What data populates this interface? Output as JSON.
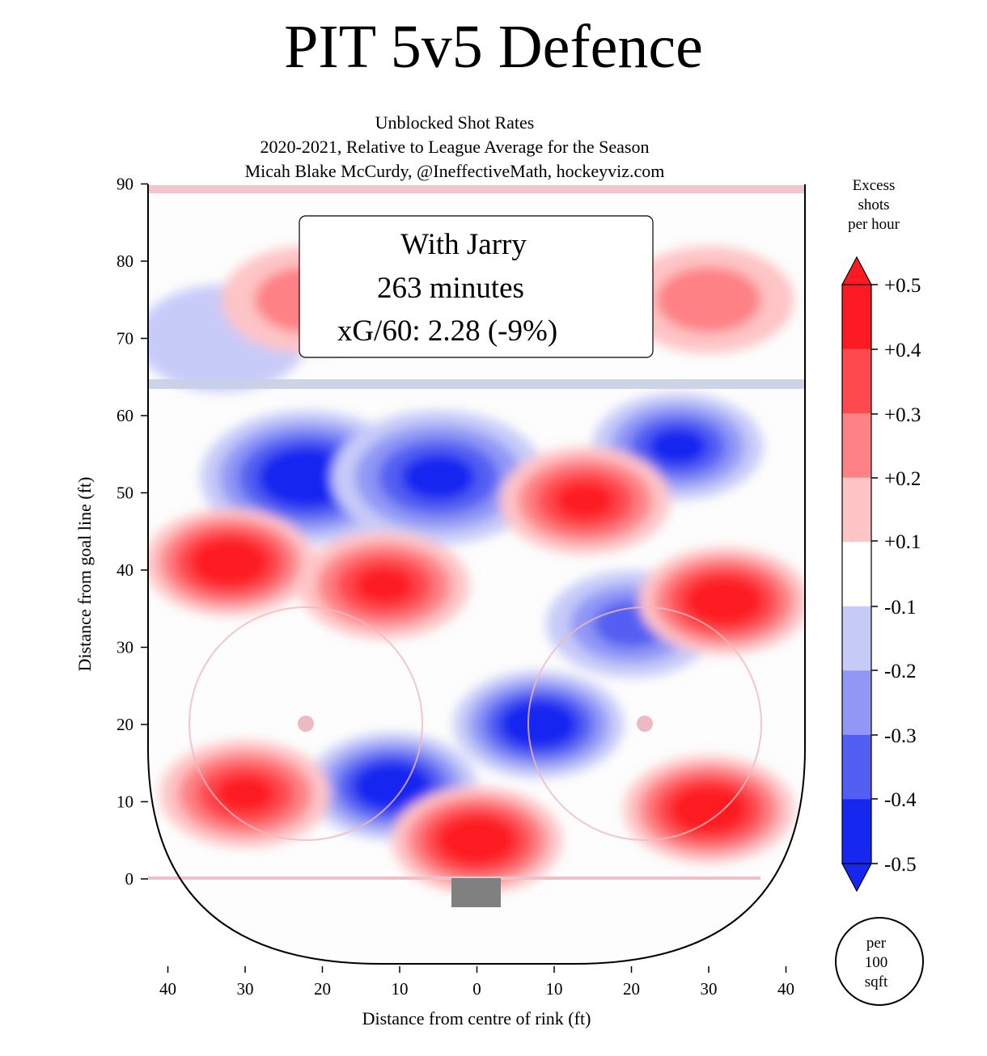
{
  "title": "PIT 5v5 Defence",
  "subtitle_lines": [
    "Unblocked Shot Rates",
    "2020-2021, Relative to League Average for the Season",
    "Micah Blake McCurdy, @IneffectiveMath, hockeyviz.com"
  ],
  "info_box": {
    "line1": "With Jarry",
    "line2": "263 minutes",
    "line3": "xG/60: 2.28 (-9%)"
  },
  "colorbar": {
    "title_lines": [
      "Excess",
      "shots",
      "per hour"
    ],
    "labels": [
      "+0.5",
      "+0.4",
      "+0.3",
      "+0.2",
      "+0.1",
      "-0.1",
      "-0.2",
      "-0.3",
      "-0.4",
      "-0.5"
    ],
    "colors": [
      "#fd1a22",
      "#fe4a4f",
      "#fd8185",
      "#fec4c6",
      "#ffffff",
      "#c7cbf8",
      "#9097f5",
      "#535ff2",
      "#1627f0"
    ]
  },
  "per_area_lines": [
    "per",
    "100",
    "sqft"
  ],
  "chart_data": {
    "type": "heatmap",
    "xlabel": "Distance from centre of rink (ft)",
    "ylabel": "Distance from goal line (ft)",
    "xlim": [
      -42,
      42
    ],
    "ylim": [
      -11,
      90
    ],
    "x_ticks": [
      {
        "v": -40,
        "t": "40"
      },
      {
        "v": -30,
        "t": "30"
      },
      {
        "v": -20,
        "t": "20"
      },
      {
        "v": -10,
        "t": "10"
      },
      {
        "v": 0,
        "t": "0"
      },
      {
        "v": 10,
        "t": "10"
      },
      {
        "v": 20,
        "t": "20"
      },
      {
        "v": 30,
        "t": "30"
      },
      {
        "v": 40,
        "t": "40"
      }
    ],
    "y_ticks": [
      0,
      10,
      20,
      30,
      40,
      50,
      60,
      70,
      80,
      90
    ],
    "levels": [
      -0.5,
      -0.4,
      -0.3,
      -0.2,
      -0.1,
      0.1,
      0.2,
      0.3,
      0.4,
      0.5
    ],
    "hot_spots": [
      {
        "region": "left point",
        "x": -32,
        "y": 41,
        "value": 0.45
      },
      {
        "region": "left high slot",
        "x": -12,
        "y": 38,
        "value": 0.4
      },
      {
        "region": "right faceoff circle",
        "x": 32,
        "y": 36,
        "value": 0.45
      },
      {
        "region": "right circle bottom",
        "x": 30,
        "y": 9,
        "value": 0.45
      },
      {
        "region": "left low",
        "x": -30,
        "y": 11,
        "value": 0.42
      },
      {
        "region": "crease",
        "x": 0,
        "y": 5,
        "value": 0.45
      },
      {
        "region": "right high",
        "x": 14,
        "y": 49,
        "value": 0.38
      },
      {
        "region": "right point",
        "x": 30,
        "y": 75,
        "value": 0.15
      },
      {
        "region": "left neutral",
        "x": -22,
        "y": 75,
        "value": 0.15
      }
    ],
    "cold_spots": [
      {
        "region": "blue line left",
        "x": -22,
        "y": 52,
        "value": -0.5
      },
      {
        "region": "blue line centre",
        "x": -5,
        "y": 52,
        "value": -0.4
      },
      {
        "region": "slot left",
        "x": -11,
        "y": 12,
        "value": -0.45
      },
      {
        "region": "slot right",
        "x": 8,
        "y": 20,
        "value": -0.45
      },
      {
        "region": "upper left",
        "x": -33,
        "y": 70,
        "value": -0.12
      },
      {
        "region": "right blue",
        "x": 26,
        "y": 56,
        "value": -0.35
      },
      {
        "region": "right mid",
        "x": 20,
        "y": 33,
        "value": -0.25
      }
    ]
  }
}
